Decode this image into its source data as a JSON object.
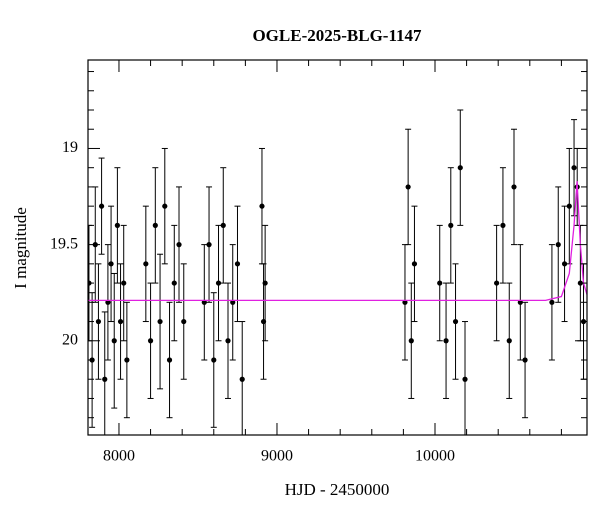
{
  "chart_data": {
    "type": "scatter",
    "title": "OGLE-2025-BLG-1147",
    "xlabel": "HJD - 2450000",
    "ylabel": "I magnitude",
    "xlim": [
      7804,
      10962
    ],
    "ylim": [
      20.49,
      18.54
    ],
    "invert_y": true,
    "xticks": [
      8000,
      9000,
      10000
    ],
    "yticks": [
      19,
      19.5,
      20
    ],
    "xminorticks": [
      8200,
      8400,
      8600,
      8800,
      9200,
      9400,
      9600,
      9800,
      10200,
      10400,
      10600,
      10800
    ],
    "yminorticks": [
      18.6,
      18.7,
      18.8,
      18.9,
      19.1,
      19.2,
      19.3,
      19.4,
      19.6,
      19.7,
      19.8,
      19.9,
      20.1,
      20.2,
      20.3,
      20.4
    ],
    "series": [
      {
        "type": "errorbar",
        "color": "#000000",
        "x": [
          7810,
          7830,
          7850,
          7870,
          7890,
          7910,
          7930,
          7950,
          7970,
          7990,
          8010,
          8030,
          8050,
          8170,
          8200,
          8230,
          8260,
          8290,
          8320,
          8350,
          8380,
          8410,
          8540,
          8570,
          8600,
          8630,
          8660,
          8690,
          8720,
          8750,
          8780,
          8905,
          8915,
          8925,
          9810,
          9830,
          9850,
          9870,
          10030,
          10070,
          10100,
          10130,
          10160,
          10190,
          10390,
          10430,
          10470,
          10500,
          10540,
          10570,
          10740,
          10780,
          10820,
          10850,
          10880,
          10900,
          10920,
          10940
        ],
        "values": [
          19.7,
          20.1,
          19.5,
          19.9,
          19.3,
          20.2,
          19.8,
          19.6,
          20.0,
          19.4,
          19.9,
          19.7,
          20.1,
          19.6,
          20.0,
          19.4,
          19.9,
          19.3,
          20.1,
          19.7,
          19.5,
          19.9,
          19.8,
          19.5,
          20.1,
          19.7,
          19.4,
          20.0,
          19.8,
          19.6,
          20.2,
          19.3,
          19.9,
          19.7,
          19.8,
          19.2,
          20.0,
          19.6,
          19.7,
          20.0,
          19.4,
          19.9,
          19.1,
          20.2,
          19.7,
          19.4,
          20.0,
          19.2,
          19.8,
          20.1,
          19.8,
          19.5,
          19.6,
          19.3,
          19.1,
          19.2,
          19.7,
          19.9
        ],
        "errors": [
          0.3,
          0.35,
          0.3,
          0.3,
          0.25,
          0.35,
          0.3,
          0.3,
          0.35,
          0.3,
          0.3,
          0.3,
          0.3,
          0.3,
          0.3,
          0.3,
          0.35,
          0.3,
          0.3,
          0.3,
          0.3,
          0.3,
          0.3,
          0.3,
          0.35,
          0.3,
          0.3,
          0.3,
          0.3,
          0.3,
          0.3,
          0.3,
          0.3,
          0.3,
          0.3,
          0.3,
          0.3,
          0.3,
          0.3,
          0.3,
          0.3,
          0.3,
          0.3,
          0.3,
          0.3,
          0.3,
          0.3,
          0.3,
          0.3,
          0.3,
          0.3,
          0.3,
          0.3,
          0.3,
          0.25,
          0.2,
          0.3,
          0.3
        ]
      },
      {
        "type": "line",
        "color": "#e020e0",
        "x": [
          7804,
          10700,
          10800,
          10850,
          10880,
          10899,
          10920,
          10940,
          10962
        ],
        "values": [
          19.79,
          19.79,
          19.77,
          19.65,
          19.4,
          19.17,
          19.5,
          19.7,
          19.76
        ]
      }
    ]
  }
}
